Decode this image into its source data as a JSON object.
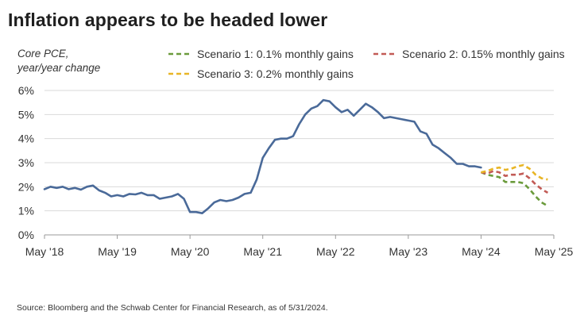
{
  "chart_data": {
    "type": "line",
    "title": "Inflation appears to be headed lower",
    "ylabel_lines": [
      "Core PCE,",
      "year/year change"
    ],
    "xlabel": "",
    "ylim": [
      0,
      6
    ],
    "y_ticks": [
      {
        "value": 0,
        "label": "0%"
      },
      {
        "value": 1,
        "label": "1%"
      },
      {
        "value": 2,
        "label": "2%"
      },
      {
        "value": 3,
        "label": "3%"
      },
      {
        "value": 4,
        "label": "4%"
      },
      {
        "value": 5,
        "label": "5%"
      },
      {
        "value": 6,
        "label": "6%"
      }
    ],
    "x_range": [
      0,
      84
    ],
    "x_ticks": [
      {
        "value": 0,
        "label": "May '18"
      },
      {
        "value": 12,
        "label": "May '19"
      },
      {
        "value": 24,
        "label": "May '20"
      },
      {
        "value": 36,
        "label": "May '21"
      },
      {
        "value": 48,
        "label": "May '22"
      },
      {
        "value": 60,
        "label": "May '23"
      },
      {
        "value": 72,
        "label": "May '24"
      },
      {
        "value": 84,
        "label": "May '25"
      }
    ],
    "x_unit": "months since May 2018",
    "grid": "horizontal",
    "series": [
      {
        "name": "Core PCE",
        "style": "solid",
        "color": "#4a6a99",
        "x": [
          0,
          1,
          2,
          3,
          4,
          5,
          6,
          7,
          8,
          9,
          10,
          11,
          12,
          13,
          14,
          15,
          16,
          17,
          18,
          19,
          20,
          21,
          22,
          23,
          24,
          25,
          26,
          27,
          28,
          29,
          30,
          31,
          32,
          33,
          34,
          35,
          36,
          37,
          38,
          39,
          40,
          41,
          42,
          43,
          44,
          45,
          46,
          47,
          48,
          49,
          50,
          51,
          52,
          53,
          54,
          55,
          56,
          57,
          58,
          59,
          60,
          61,
          62,
          63,
          64,
          65,
          66,
          67,
          68,
          69,
          70,
          71,
          72
        ],
        "values": [
          1.9,
          2.0,
          1.95,
          2.0,
          1.9,
          1.95,
          1.88,
          2.0,
          2.05,
          1.85,
          1.75,
          1.6,
          1.65,
          1.6,
          1.7,
          1.68,
          1.75,
          1.65,
          1.65,
          1.5,
          1.55,
          1.6,
          1.7,
          1.5,
          0.95,
          0.95,
          0.9,
          1.1,
          1.35,
          1.45,
          1.4,
          1.45,
          1.55,
          1.7,
          1.75,
          2.3,
          3.2,
          3.6,
          3.95,
          4.0,
          4.0,
          4.1,
          4.6,
          5.0,
          5.25,
          5.35,
          5.6,
          5.55,
          5.3,
          5.1,
          5.2,
          4.95,
          5.2,
          5.45,
          5.3,
          5.1,
          4.85,
          4.9,
          4.85,
          4.8,
          4.75,
          4.7,
          4.3,
          4.2,
          3.75,
          3.6,
          3.4,
          3.2,
          2.95,
          2.95,
          2.85,
          2.85,
          2.8
        ]
      },
      {
        "name": "Scenario 1: 0.1% monthly gains",
        "style": "dashed",
        "color": "#6b9b3c",
        "x": [
          72,
          73,
          74,
          75,
          76,
          77,
          78,
          79,
          80,
          81,
          82,
          83
        ],
        "values": [
          2.6,
          2.5,
          2.45,
          2.4,
          2.2,
          2.2,
          2.2,
          2.15,
          1.9,
          1.6,
          1.35,
          1.2
        ]
      },
      {
        "name": "Scenario 2: 0.15% monthly gains",
        "style": "dashed",
        "color": "#c25b56",
        "x": [
          72,
          73,
          74,
          75,
          76,
          77,
          78,
          79,
          80,
          81,
          82,
          83
        ],
        "values": [
          2.6,
          2.55,
          2.65,
          2.6,
          2.45,
          2.5,
          2.5,
          2.55,
          2.35,
          2.1,
          1.9,
          1.75
        ]
      },
      {
        "name": "Scenario 3: 0.2% monthly gains",
        "style": "dashed",
        "color": "#e8b526",
        "x": [
          72,
          73,
          74,
          75,
          76,
          77,
          78,
          79,
          80,
          81,
          82,
          83
        ],
        "values": [
          2.6,
          2.65,
          2.75,
          2.8,
          2.7,
          2.75,
          2.85,
          2.9,
          2.75,
          2.5,
          2.35,
          2.3
        ]
      }
    ],
    "legend": {
      "placement": "top-right",
      "items": [
        {
          "label": "Scenario 1: 0.1% monthly gains",
          "color": "#6b9b3c"
        },
        {
          "label": "Scenario 2: 0.15% monthly gains",
          "color": "#c25b56"
        },
        {
          "label": "Scenario 3: 0.2% monthly gains",
          "color": "#e8b526"
        }
      ]
    },
    "source": "Source: Bloomberg and the Schwab Center for Financial Research, as of 5/31/2024."
  }
}
